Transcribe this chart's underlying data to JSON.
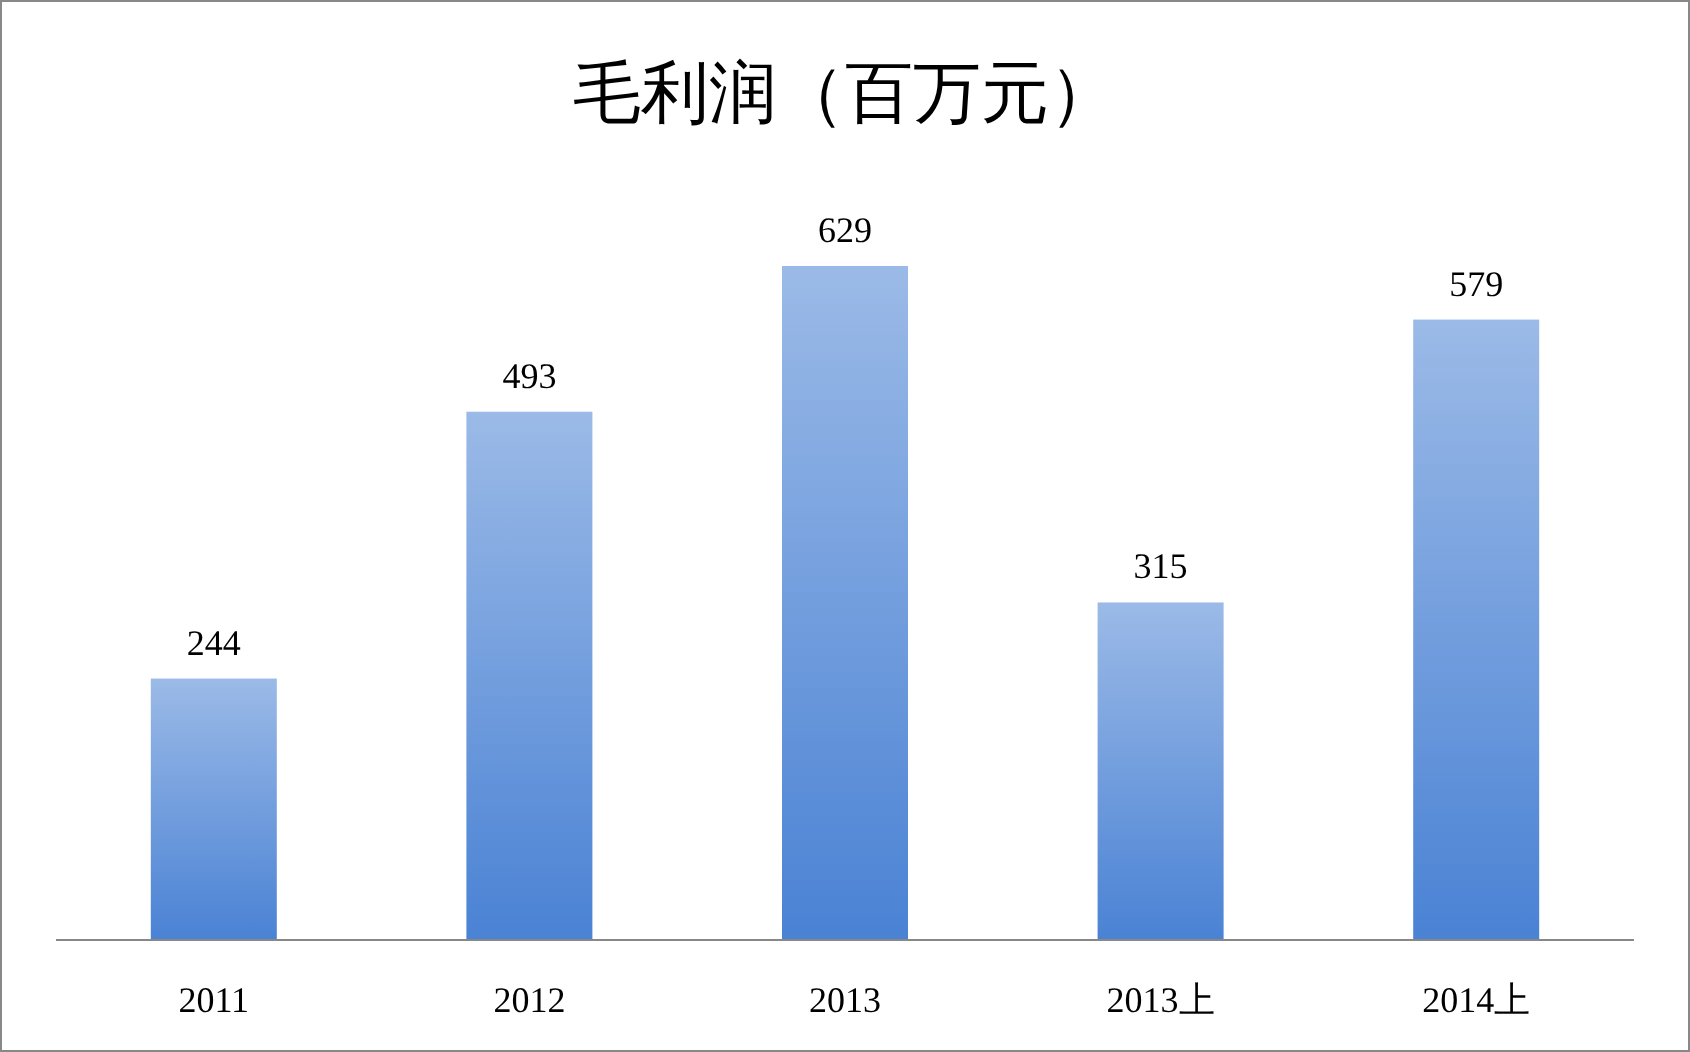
{
  "chart_data": {
    "type": "bar",
    "title": "毛利润（百万元）",
    "categories": [
      "2011",
      "2012",
      "2013",
      "2013上",
      "2014上"
    ],
    "values": [
      244,
      493,
      629,
      315,
      579
    ],
    "color": "#4a82d4",
    "data_labels": true
  }
}
